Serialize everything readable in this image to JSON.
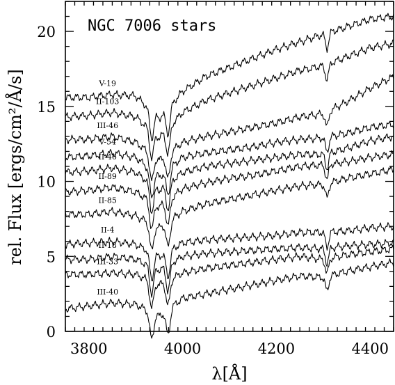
{
  "chart_data": {
    "type": "line",
    "title": "NGC 7006 stars",
    "xlabel": "λ[Å]",
    "ylabel": "rel. Flux [ergs/cm²/Å/s]",
    "xlim": [
      3750,
      4450
    ],
    "ylim": [
      0,
      22
    ],
    "x_ticks": [
      3800,
      4000,
      4200,
      4400
    ],
    "y_ticks": [
      0,
      5,
      10,
      15,
      20
    ],
    "grid": false,
    "features": {
      "ca_k": 3934,
      "ca_h": 3969,
      "g_band": 4308
    },
    "series": [
      {
        "name": "V-19",
        "points": [
          [
            3750,
            15.6
          ],
          [
            3800,
            15.6
          ],
          [
            3850,
            15.8
          ],
          [
            3900,
            15.7
          ],
          [
            3950,
            14.2
          ],
          [
            4000,
            16.0
          ],
          [
            4050,
            17.0
          ],
          [
            4100,
            17.6
          ],
          [
            4150,
            18.2
          ],
          [
            4200,
            18.8
          ],
          [
            4250,
            19.3
          ],
          [
            4300,
            19.8
          ],
          [
            4350,
            20.3
          ],
          [
            4400,
            20.8
          ],
          [
            4450,
            21.0
          ]
        ]
      },
      {
        "name": "II-103",
        "points": [
          [
            3750,
            14.3
          ],
          [
            3800,
            14.4
          ],
          [
            3850,
            14.6
          ],
          [
            3900,
            14.3
          ],
          [
            3950,
            12.9
          ],
          [
            4000,
            14.6
          ],
          [
            4050,
            15.4
          ],
          [
            4100,
            15.9
          ],
          [
            4150,
            16.4
          ],
          [
            4200,
            16.9
          ],
          [
            4250,
            17.4
          ],
          [
            4300,
            17.7
          ],
          [
            4350,
            18.3
          ],
          [
            4400,
            18.9
          ],
          [
            4450,
            19.2
          ]
        ]
      },
      {
        "name": "III-46",
        "points": [
          [
            3750,
            12.8
          ],
          [
            3800,
            12.8
          ],
          [
            3850,
            13.0
          ],
          [
            3900,
            12.6
          ],
          [
            3950,
            11.4
          ],
          [
            4000,
            12.6
          ],
          [
            4050,
            13.0
          ],
          [
            4100,
            13.3
          ],
          [
            4150,
            13.6
          ],
          [
            4200,
            13.9
          ],
          [
            4250,
            14.3
          ],
          [
            4300,
            14.5
          ],
          [
            4350,
            15.3
          ],
          [
            4400,
            16.2
          ],
          [
            4450,
            17.0
          ]
        ]
      },
      {
        "name": "V-54",
        "points": [
          [
            3750,
            11.6
          ],
          [
            3800,
            11.7
          ],
          [
            3850,
            11.9
          ],
          [
            3900,
            11.6
          ],
          [
            3950,
            10.3
          ],
          [
            4000,
            11.6
          ],
          [
            4050,
            11.9
          ],
          [
            4100,
            12.1
          ],
          [
            4150,
            12.3
          ],
          [
            4200,
            12.6
          ],
          [
            4250,
            12.8
          ],
          [
            4300,
            12.9
          ],
          [
            4350,
            13.2
          ],
          [
            4400,
            13.6
          ],
          [
            4450,
            13.8
          ]
        ]
      },
      {
        "name": "II-46",
        "points": [
          [
            3750,
            10.6
          ],
          [
            3800,
            10.7
          ],
          [
            3850,
            10.9
          ],
          [
            3900,
            10.6
          ],
          [
            3950,
            9.4
          ],
          [
            4000,
            10.6
          ],
          [
            4050,
            11.0
          ],
          [
            4100,
            11.2
          ],
          [
            4150,
            11.4
          ],
          [
            4200,
            11.6
          ],
          [
            4250,
            11.8
          ],
          [
            4300,
            11.8
          ],
          [
            4350,
            12.2
          ],
          [
            4400,
            12.7
          ],
          [
            4450,
            13.0
          ]
        ]
      },
      {
        "name": "II-89",
        "points": [
          [
            3750,
            9.3
          ],
          [
            3800,
            9.4
          ],
          [
            3850,
            9.6
          ],
          [
            3900,
            9.3
          ],
          [
            3950,
            8.3
          ],
          [
            4000,
            9.5
          ],
          [
            4050,
            9.9
          ],
          [
            4100,
            10.2
          ],
          [
            4150,
            10.4
          ],
          [
            4200,
            10.7
          ],
          [
            4250,
            11.0
          ],
          [
            4300,
            11.1
          ],
          [
            4350,
            11.3
          ],
          [
            4400,
            11.6
          ],
          [
            4450,
            11.8
          ]
        ]
      },
      {
        "name": "II-85",
        "points": [
          [
            3750,
            7.8
          ],
          [
            3800,
            7.8
          ],
          [
            3850,
            8.0
          ],
          [
            3900,
            7.7
          ],
          [
            3950,
            6.9
          ],
          [
            4000,
            8.0
          ],
          [
            4050,
            8.5
          ],
          [
            4100,
            8.8
          ],
          [
            4150,
            9.1
          ],
          [
            4200,
            9.4
          ],
          [
            4250,
            9.7
          ],
          [
            4300,
            9.8
          ],
          [
            4350,
            10.2
          ],
          [
            4400,
            10.5
          ],
          [
            4450,
            10.8
          ]
        ]
      },
      {
        "name": "II-4",
        "points": [
          [
            3750,
            5.8
          ],
          [
            3800,
            5.9
          ],
          [
            3850,
            6.0
          ],
          [
            3900,
            5.8
          ],
          [
            3950,
            5.0
          ],
          [
            4000,
            5.9
          ],
          [
            4050,
            6.1
          ],
          [
            4100,
            6.2
          ],
          [
            4150,
            6.3
          ],
          [
            4200,
            6.4
          ],
          [
            4250,
            6.6
          ],
          [
            4300,
            6.6
          ],
          [
            4350,
            6.7
          ],
          [
            4400,
            6.9
          ],
          [
            4450,
            7.0
          ]
        ]
      },
      {
        "name": "II-18",
        "points": [
          [
            3750,
            4.8
          ],
          [
            3800,
            4.8
          ],
          [
            3850,
            5.0
          ],
          [
            3900,
            4.8
          ],
          [
            3950,
            4.1
          ],
          [
            4000,
            5.0
          ],
          [
            4050,
            5.2
          ],
          [
            4100,
            5.3
          ],
          [
            4150,
            5.4
          ],
          [
            4200,
            5.5
          ],
          [
            4250,
            5.6
          ],
          [
            4300,
            5.5
          ],
          [
            4350,
            5.7
          ],
          [
            4400,
            5.8
          ],
          [
            4450,
            5.9
          ]
        ]
      },
      {
        "name": "III-33",
        "points": [
          [
            3750,
            3.8
          ],
          [
            3800,
            3.8
          ],
          [
            3850,
            3.9
          ],
          [
            3900,
            3.8
          ],
          [
            3950,
            3.1
          ],
          [
            4000,
            3.9
          ],
          [
            4050,
            4.2
          ],
          [
            4100,
            4.4
          ],
          [
            4150,
            4.6
          ],
          [
            4200,
            4.8
          ],
          [
            4250,
            5.0
          ],
          [
            4300,
            4.8
          ],
          [
            4350,
            5.1
          ],
          [
            4400,
            5.3
          ],
          [
            4450,
            5.5
          ]
        ]
      },
      {
        "name": "III-40",
        "points": [
          [
            3750,
            1.5
          ],
          [
            3800,
            1.7
          ],
          [
            3850,
            1.9
          ],
          [
            3900,
            1.8
          ],
          [
            3950,
            1.0
          ],
          [
            4000,
            2.2
          ],
          [
            4050,
            2.5
          ],
          [
            4100,
            2.8
          ],
          [
            4150,
            3.1
          ],
          [
            4200,
            3.4
          ],
          [
            4250,
            3.7
          ],
          [
            4300,
            3.6
          ],
          [
            4350,
            4.0
          ],
          [
            4400,
            4.3
          ],
          [
            4450,
            4.6
          ]
        ]
      }
    ]
  }
}
